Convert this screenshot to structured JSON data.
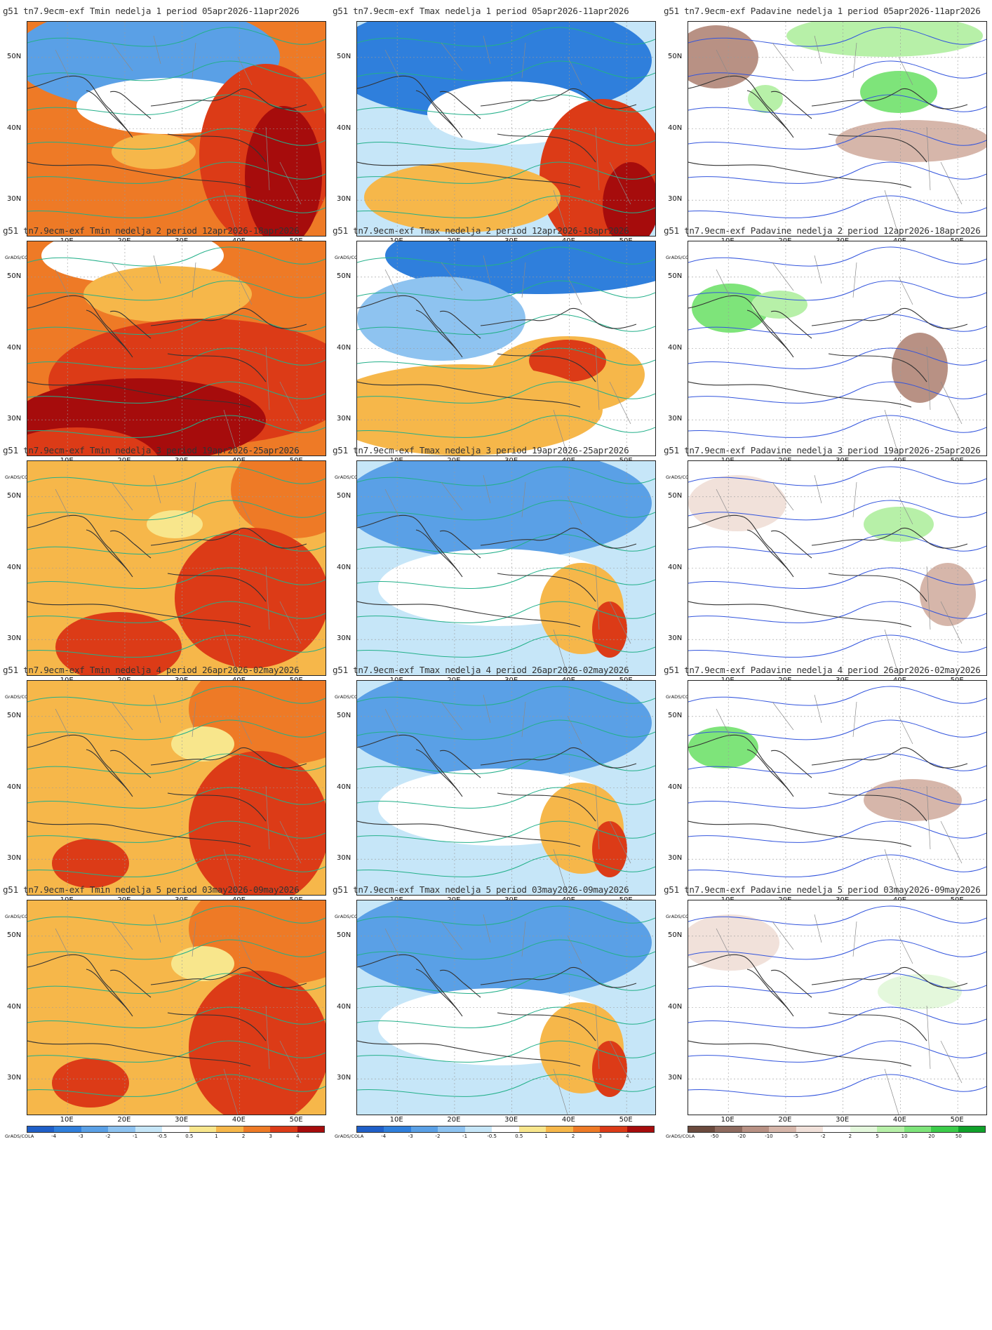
{
  "credit": "GrADS/COLA",
  "lat_labels": [
    "50N",
    "40N",
    "30N"
  ],
  "lon_labels": [
    "10E",
    "20E",
    "30E",
    "40E",
    "50E"
  ],
  "temp_scale": {
    "labels": [
      "-4",
      "-3",
      "-2",
      "-1",
      "-0.5",
      "0.5",
      "1",
      "2",
      "3",
      "4"
    ],
    "colors": [
      "#1f5fc8",
      "#2f7fdc",
      "#5aa0e6",
      "#8ec3f0",
      "#c6e6f8",
      "#ffffff",
      "#f8e68c",
      "#f6b74a",
      "#ee7a26",
      "#dc3b17",
      "#a60c0c"
    ]
  },
  "precip_scale": {
    "labels": [
      "-50",
      "-20",
      "-10",
      "-5",
      "-2",
      "2",
      "5",
      "10",
      "20",
      "50"
    ],
    "colors": [
      "#6b4a3d",
      "#8e6a5e",
      "#b89184",
      "#d6b6aa",
      "#f1e1da",
      "#ffffff",
      "#e4f8dc",
      "#b7f0a8",
      "#7ee47a",
      "#3ccc4a",
      "#10a12a"
    ]
  },
  "panels": [
    {
      "title": "g51 tn7.9ecm-exf Tmin nedelja 1 period 05apr2026-11apr2026",
      "variable": "Tmin",
      "week": 1
    },
    {
      "title": "g51 tn7.9ecm-exf Tmax nedelja 1 period 05apr2026-11apr2026",
      "variable": "Tmax",
      "week": 1
    },
    {
      "title": "g51 tn7.9ecm-exf Padavine nedelja 1 period 05apr2026-11apr2026",
      "variable": "Padavine",
      "week": 1
    },
    {
      "title": "g51 tn7.9ecm-exf Tmin nedelja 2 period 12apr2026-18apr2026",
      "variable": "Tmin",
      "week": 2
    },
    {
      "title": "g51 tn7.9ecm-exf Tmax nedelja 2 period 12apr2026-18apr2026",
      "variable": "Tmax",
      "week": 2
    },
    {
      "title": "g51 tn7.9ecm-exf Padavine nedelja 2 period 12apr2026-18apr2026",
      "variable": "Padavine",
      "week": 2
    },
    {
      "title": "g51 tn7.9ecm-exf Tmin nedelja 3 period 19apr2026-25apr2026",
      "variable": "Tmin",
      "week": 3
    },
    {
      "title": "g51 tn7.9ecm-exf Tmax nedelja 3 period 19apr2026-25apr2026",
      "variable": "Tmax",
      "week": 3
    },
    {
      "title": "g51 tn7.9ecm-exf Padavine nedelja 3 period 19apr2026-25apr2026",
      "variable": "Padavine",
      "week": 3
    },
    {
      "title": "g51 tn7.9ecm-exf Tmin nedelja 4 period 26apr2026-02may2026",
      "variable": "Tmin",
      "week": 4
    },
    {
      "title": "g51 tn7.9ecm-exf Tmax nedelja 4 period 26apr2026-02may2026",
      "variable": "Tmax",
      "week": 4
    },
    {
      "title": "g51 tn7.9ecm-exf Padavine nedelja 4 period 26apr2026-02may2026",
      "variable": "Padavine",
      "week": 4
    },
    {
      "title": "g51 tn7.9ecm-exf Tmin nedelja 5 period 03may2026-09may2026",
      "variable": "Tmin",
      "week": 5
    },
    {
      "title": "g51 tn7.9ecm-exf Tmax nedelja 5 period 03may2026-09may2026",
      "variable": "Tmax",
      "week": 5
    },
    {
      "title": "g51 tn7.9ecm-exf Padavine nedelja 5 period 03may2026-09may2026",
      "variable": "Padavine",
      "week": 5
    }
  ]
}
